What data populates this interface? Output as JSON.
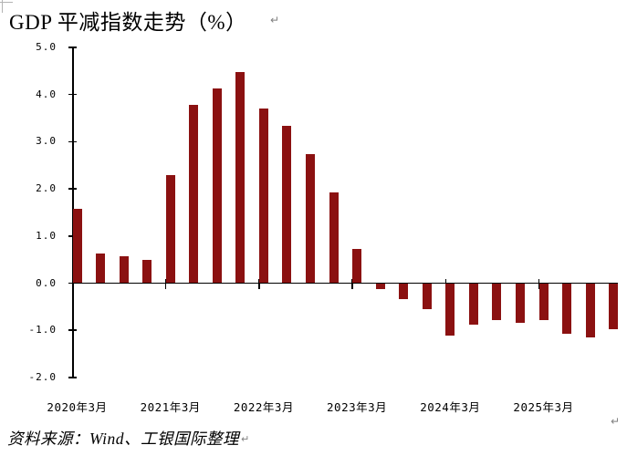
{
  "page": {
    "background": "#ffffff"
  },
  "header": {
    "title": "GDP 平减指数走势（%）",
    "paragraph_mark": "↵"
  },
  "footer": {
    "source": "资料来源：Wind、工银国际整理",
    "paragraph_mark": "↵"
  },
  "chart_data": {
    "type": "bar",
    "title": "GDP 平减指数走势（%）",
    "x": [
      "2020-03",
      "2020-06",
      "2020-09",
      "2020-12",
      "2021-03",
      "2021-06",
      "2021-09",
      "2021-12",
      "2022-03",
      "2022-06",
      "2022-09",
      "2022-12",
      "2023-03",
      "2023-06",
      "2023-09",
      "2023-12",
      "2024-03",
      "2024-06",
      "2024-09",
      "2024-12",
      "2025-03",
      "2025-06",
      "2025-09",
      "2025-12"
    ],
    "values": [
      1.57,
      0.63,
      0.57,
      0.5,
      2.3,
      3.78,
      4.12,
      4.48,
      3.7,
      3.33,
      2.73,
      1.92,
      0.73,
      -0.12,
      -0.32,
      -0.53,
      -1.1,
      -0.86,
      -0.76,
      -0.83,
      -0.77,
      -1.05,
      -1.13,
      -0.96
    ],
    "ylim": [
      -2.0,
      5.0
    ],
    "ytick_interval": 1.0,
    "ytick_labels": [
      "5.0",
      "4.0",
      "3.0",
      "2.0",
      "1.0",
      "0.0",
      "-1.0",
      "-2.0"
    ],
    "xtick_labels": [
      "2020年3月",
      "2021年3月",
      "2022年3月",
      "2023年3月",
      "2024年3月",
      "2025年3月"
    ],
    "xlabel": "",
    "ylabel": "",
    "grid": false,
    "legend_position": "none",
    "bar_color": "#8B1111",
    "axis_color": "#000000",
    "label_color": "#000000",
    "paragraph_mark_color": "#808080"
  }
}
